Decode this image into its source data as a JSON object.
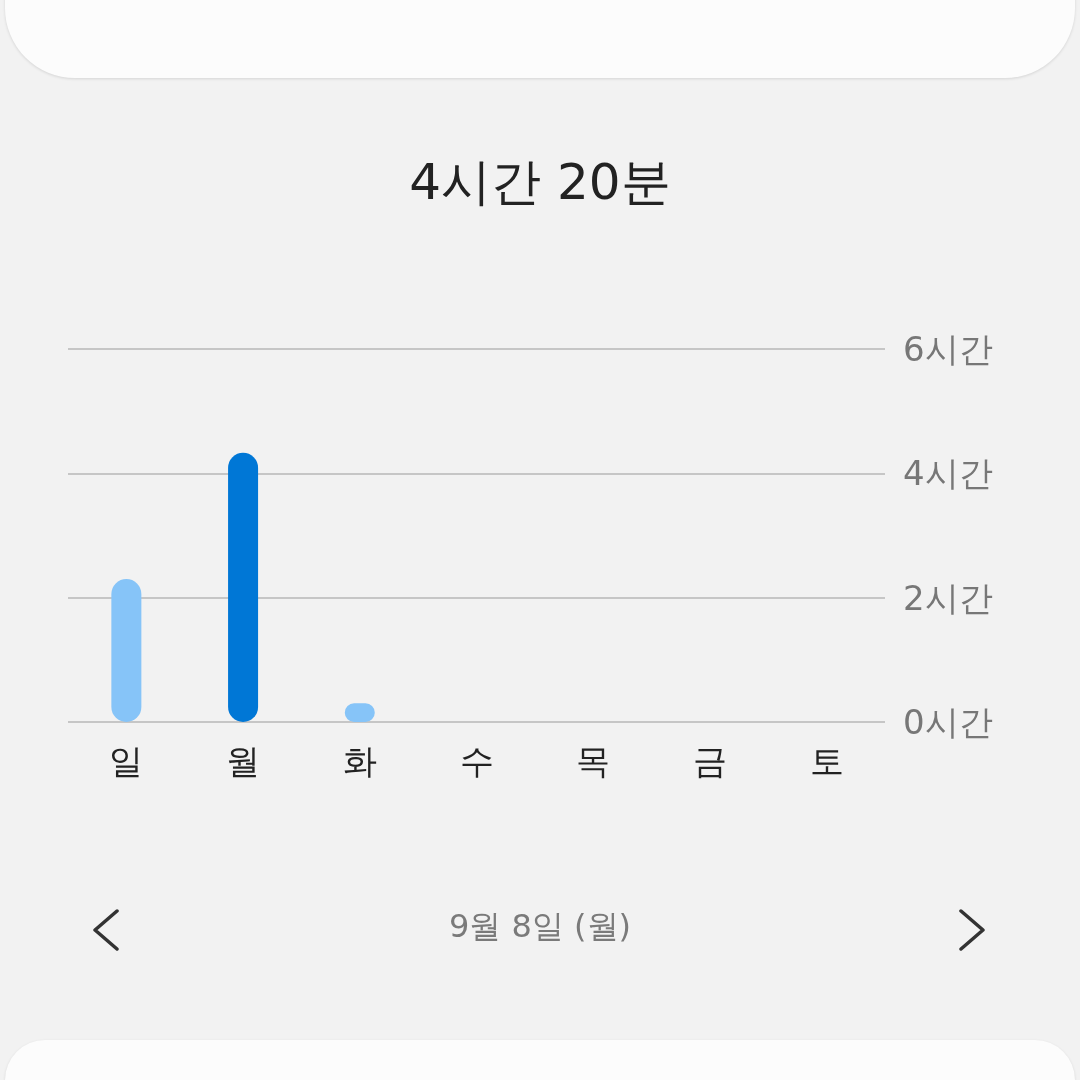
{
  "chart_data": {
    "type": "bar",
    "title": "4시간 20분",
    "categories": [
      "일",
      "월",
      "화",
      "수",
      "목",
      "금",
      "토"
    ],
    "values": [
      2.3,
      4.33,
      0.3,
      0,
      0,
      0,
      0
    ],
    "colors": [
      "#86c4f8",
      "#0077d6",
      "#86c4f8",
      "#86c4f8",
      "#86c4f8",
      "#86c4f8",
      "#86c4f8"
    ],
    "ylim": [
      0,
      6
    ],
    "yticks": [
      {
        "value": 0,
        "label": "0시간"
      },
      {
        "value": 2,
        "label": "2시간"
      },
      {
        "value": 4,
        "label": "4시간"
      },
      {
        "value": 6,
        "label": "6시간"
      }
    ],
    "grid": "y",
    "annotations": [
      "9월 8일 (월)"
    ]
  }
}
